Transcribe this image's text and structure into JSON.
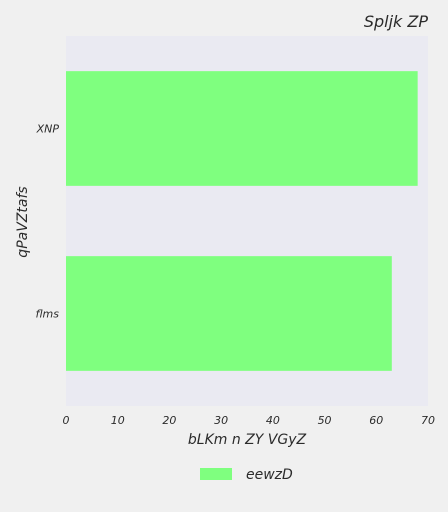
{
  "chart_data": {
    "type": "bar",
    "orientation": "horizontal",
    "title": "Spljk ZP",
    "xlabel": "bLKm n ZY VGyZ",
    "ylabel": "qPaVZtafs",
    "categories": [
      "XNP",
      "flms"
    ],
    "series": [
      {
        "name": "eewzD",
        "values": [
          68,
          63
        ],
        "color": "#7fff7f"
      }
    ],
    "xlim": [
      0,
      70
    ],
    "xticks": [
      0,
      10,
      20,
      30,
      40,
      50,
      60,
      70
    ],
    "xtick_labels": [
      "0",
      "10",
      "20",
      "30",
      "40",
      "50",
      "60",
      "70"
    ],
    "legend_position": "bottom-center",
    "plot_background": "#eaeaf2",
    "grid": false
  }
}
